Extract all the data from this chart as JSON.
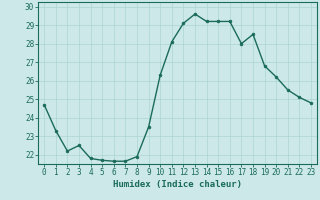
{
  "x": [
    0,
    1,
    2,
    3,
    4,
    5,
    6,
    7,
    8,
    9,
    10,
    11,
    12,
    13,
    14,
    15,
    16,
    17,
    18,
    19,
    20,
    21,
    22,
    23
  ],
  "y": [
    24.7,
    23.3,
    22.2,
    22.5,
    21.8,
    21.7,
    21.65,
    21.65,
    21.9,
    23.5,
    26.3,
    28.1,
    29.1,
    29.6,
    29.2,
    29.2,
    29.2,
    28.0,
    28.5,
    26.8,
    26.2,
    25.5,
    25.1,
    24.8
  ],
  "xlabel": "Humidex (Indice chaleur)",
  "ylim": [
    21.5,
    30.25
  ],
  "xlim": [
    -0.5,
    23.5
  ],
  "yticks": [
    22,
    23,
    24,
    25,
    26,
    27,
    28,
    29,
    30
  ],
  "xticks": [
    0,
    1,
    2,
    3,
    4,
    5,
    6,
    7,
    8,
    9,
    10,
    11,
    12,
    13,
    14,
    15,
    16,
    17,
    18,
    19,
    20,
    21,
    22,
    23
  ],
  "line_color": "#1a6b5a",
  "marker_color": "#1a6b5a",
  "bg_color": "#cce8e8",
  "grid_color": "#aad4d4",
  "axis_color": "#1a6b5a",
  "label_color": "#1a6b5a",
  "tick_label_color": "#1a6b5a",
  "xlabel_fontsize": 6.5,
  "tick_fontsize": 5.5,
  "marker_size": 2.0,
  "linewidth": 1.0
}
